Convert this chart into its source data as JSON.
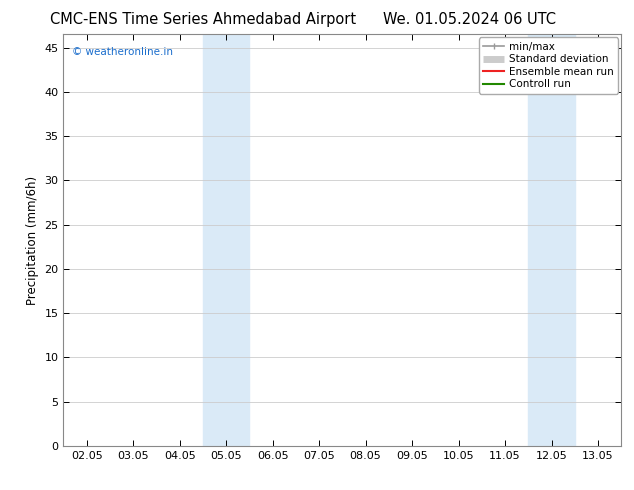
{
  "title_left": "CMC-ENS Time Series Ahmedabad Airport",
  "title_right": "We. 01.05.2024 06 UTC",
  "ylabel": "Precipitation (mm/6h)",
  "ylim": [
    0,
    46.5
  ],
  "yticks": [
    0,
    5,
    10,
    15,
    20,
    25,
    30,
    35,
    40,
    45
  ],
  "xlabels": [
    "02.05",
    "03.05",
    "04.05",
    "05.05",
    "06.05",
    "07.05",
    "08.05",
    "09.05",
    "10.05",
    "11.05",
    "12.05",
    "13.05"
  ],
  "x_positions": [
    0,
    1,
    2,
    3,
    4,
    5,
    6,
    7,
    8,
    9,
    10,
    11
  ],
  "shaded_bands": [
    {
      "xmin": 2.5,
      "xmax": 3.5,
      "color": "#daeaf7"
    },
    {
      "xmin": 9.5,
      "xmax": 10.5,
      "color": "#daeaf7"
    }
  ],
  "watermark": "© weatheronline.in",
  "watermark_color": "#1a6dcc",
  "legend_items": [
    {
      "label": "min/max",
      "color": "#999999",
      "lw": 1.2
    },
    {
      "label": "Standard deviation",
      "color": "#cccccc",
      "lw": 5
    },
    {
      "label": "Ensemble mean run",
      "color": "#ee2222",
      "lw": 1.5
    },
    {
      "label": "Controll run",
      "color": "#228800",
      "lw": 1.5
    }
  ],
  "bg_color": "#ffffff",
  "plot_bg_color": "#ffffff",
  "grid_color": "#cccccc",
  "title_fontsize": 10.5,
  "tick_fontsize": 8,
  "ylabel_fontsize": 8.5,
  "watermark_fontsize": 7.5,
  "legend_fontsize": 7.5
}
